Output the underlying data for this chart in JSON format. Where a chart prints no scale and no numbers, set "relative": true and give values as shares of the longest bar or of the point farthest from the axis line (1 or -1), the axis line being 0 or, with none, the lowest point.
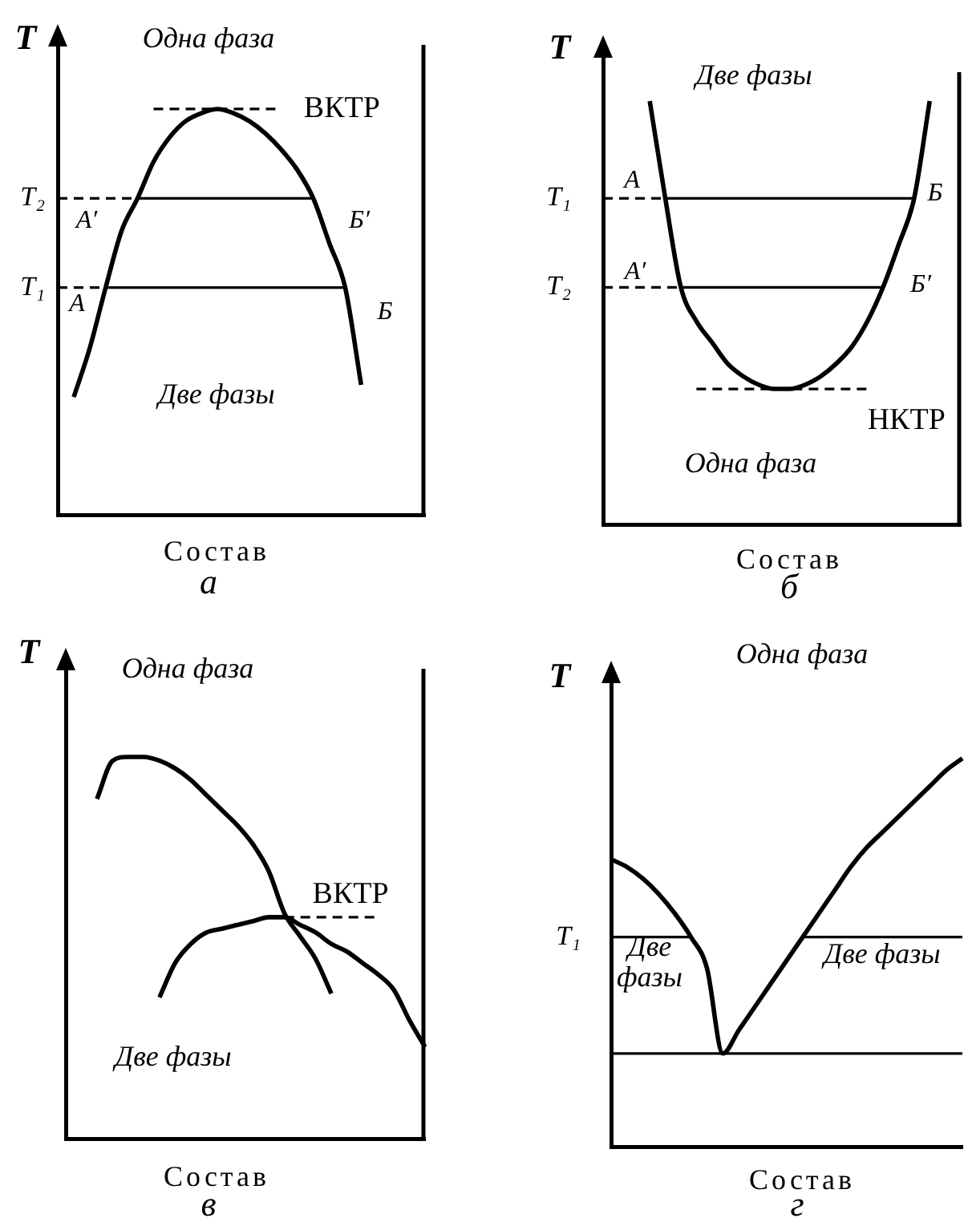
{
  "chart_data": [
    {
      "type": "line",
      "title": "а",
      "xlabel": "Состав",
      "ylabel": "T",
      "relative": true,
      "annotations": [
        "Одна фаза",
        "Две фазы",
        "А′",
        "Б′",
        "А",
        "Б"
      ],
      "categories": [
        null,
        null,
        null,
        null,
        null,
        null,
        null,
        null,
        null,
        null,
        null,
        null,
        null,
        null,
        null,
        null,
        null,
        null,
        null,
        null,
        null,
        null,
        null,
        null
      ],
      "series": [
        {
          "color": "#000000",
          "values": [
            null,
            0.29,
            0.41,
            0.56,
            0.7,
            0.78,
            0.87,
            0.93,
            0.97,
            0.99,
            1,
            0.99,
            0.97,
            0.94,
            0.9,
            0.85,
            0.78,
            0.67,
            0.56,
            0.32,
            null,
            null,
            null,
            null
          ]
        },
        {
          "name": "ВКТР",
          "color": "#000000",
          "line_style": "dashed",
          "values": [
            null,
            null,
            null,
            null,
            null,
            null,
            1,
            1,
            1,
            1,
            1,
            1,
            1,
            1,
            1,
            null,
            null,
            null,
            null,
            null,
            null,
            null,
            null,
            null
          ]
        },
        {
          "name": "T₂",
          "color": "#000000",
          "line_style": "dashed",
          "values": [
            0.78,
            0.78,
            0.78,
            0.78,
            0.78,
            0.78,
            null,
            null,
            null,
            null,
            null,
            null,
            null,
            null,
            null,
            null,
            null,
            null,
            null,
            null,
            null,
            null,
            null,
            null
          ]
        },
        {
          "color": "#000000",
          "values": [
            null,
            null,
            null,
            null,
            null,
            0.78,
            0.78,
            0.78,
            0.78,
            0.78,
            0.78,
            0.78,
            0.78,
            0.78,
            0.78,
            0.78,
            0.78,
            null,
            null,
            null,
            null,
            null,
            null,
            null
          ]
        },
        {
          "name": "T₁",
          "color": "#000000",
          "line_style": "dashed",
          "values": [
            0.56,
            0.56,
            0.56,
            0.56,
            null,
            null,
            null,
            null,
            null,
            null,
            null,
            null,
            null,
            null,
            null,
            null,
            null,
            null,
            null,
            null,
            null,
            null,
            null,
            null
          ]
        },
        {
          "color": "#000000",
          "values": [
            null,
            null,
            null,
            0.56,
            0.56,
            0.56,
            0.56,
            0.56,
            0.56,
            0.56,
            0.56,
            0.56,
            0.56,
            0.56,
            0.56,
            0.56,
            0.56,
            0.56,
            0.56,
            null,
            null,
            null,
            null,
            null
          ]
        }
      ]
    },
    {
      "type": "line",
      "title": "б",
      "xlabel": "Состав",
      "ylabel": "T",
      "relative": true,
      "annotations": [
        "Две фазы",
        "Одна фаза",
        "А",
        "Б",
        "А′",
        "Б′"
      ],
      "categories": [
        null,
        null,
        null,
        null,
        null,
        null,
        null,
        null,
        null,
        null,
        null,
        null,
        null,
        null,
        null,
        null,
        null,
        null,
        null,
        null,
        null,
        null,
        null,
        null
      ],
      "series": [
        {
          "color": "#000000",
          "values": [
            null,
            null,
            null,
            1,
            0.77,
            0.56,
            0.48,
            0.43,
            0.38,
            0.35,
            0.33,
            0.32,
            0.32,
            0.33,
            0.35,
            0.38,
            0.42,
            0.48,
            0.56,
            0.66,
            0.77,
            1,
            null,
            null
          ]
        },
        {
          "name": "НКТР",
          "color": "#000000",
          "line_style": "dashed",
          "values": [
            null,
            null,
            null,
            null,
            null,
            null,
            0.32,
            0.32,
            0.32,
            0.32,
            0.32,
            0.32,
            0.32,
            0.32,
            0.32,
            0.32,
            0.32,
            0.32,
            null,
            null,
            null,
            null,
            null,
            null
          ]
        },
        {
          "name": "T₁",
          "color": "#000000",
          "line_style": "dashed",
          "values": [
            0.77,
            0.77,
            0.77,
            0.77,
            0.77,
            null,
            null,
            null,
            null,
            null,
            null,
            null,
            null,
            null,
            null,
            null,
            null,
            null,
            null,
            null,
            null,
            null,
            null,
            null
          ]
        },
        {
          "color": "#000000",
          "values": [
            null,
            null,
            null,
            null,
            0.77,
            0.77,
            0.77,
            0.77,
            0.77,
            0.77,
            0.77,
            0.77,
            0.77,
            0.77,
            0.77,
            0.77,
            0.77,
            0.77,
            0.77,
            0.77,
            0.77,
            null,
            null,
            null
          ]
        },
        {
          "name": "T₂",
          "color": "#000000",
          "line_style": "dashed",
          "values": [
            0.56,
            0.56,
            0.56,
            0.56,
            0.56,
            0.56,
            null,
            null,
            null,
            null,
            null,
            null,
            null,
            null,
            null,
            null,
            null,
            null,
            null,
            null,
            null,
            null,
            null,
            null
          ]
        },
        {
          "color": "#000000",
          "values": [
            null,
            null,
            null,
            null,
            null,
            0.56,
            0.56,
            0.56,
            0.56,
            0.56,
            0.56,
            0.56,
            0.56,
            0.56,
            0.56,
            0.56,
            0.56,
            0.56,
            0.56,
            null,
            null,
            null,
            null,
            null
          ]
        }
      ]
    },
    {
      "type": "line",
      "title": "в",
      "xlabel": "Состав",
      "ylabel": "T",
      "relative": true,
      "annotations": [
        "Одна фаза",
        "Две фазы"
      ],
      "categories": [
        null,
        null,
        null,
        null,
        null,
        null,
        null,
        null,
        null,
        null,
        null,
        null,
        null,
        null,
        null,
        null,
        null,
        null,
        null,
        null,
        null,
        null,
        null,
        null
      ],
      "series": [
        {
          "color": "#000000",
          "values": [
            null,
            null,
            0.89,
            0.99,
            1,
            1,
            0.99,
            0.97,
            0.94,
            0.9,
            0.86,
            0.82,
            0.77,
            0.7,
            0.59,
            0.53,
            0.47,
            0.38,
            null,
            null,
            null,
            null,
            null,
            null
          ]
        },
        {
          "color": "#000000",
          "values": [
            null,
            null,
            null,
            null,
            null,
            null,
            0.37,
            0.46,
            0.51,
            0.54,
            0.55,
            0.56,
            0.57,
            0.58,
            0.58,
            0.56,
            0.54,
            0.51,
            0.49,
            0.46,
            0.43,
            0.39,
            0.31,
            0.24
          ]
        },
        {
          "name": "ВКТР",
          "color": "#000000",
          "line_style": "dashed",
          "values": [
            null,
            null,
            null,
            null,
            null,
            null,
            null,
            null,
            null,
            null,
            null,
            null,
            null,
            null,
            0.58,
            0.58,
            0.58,
            0.58,
            0.58,
            0.58,
            0.58,
            null,
            null,
            null
          ]
        }
      ]
    },
    {
      "type": "line",
      "title": "г",
      "xlabel": "Состав",
      "ylabel": "T",
      "relative": true,
      "annotations": [
        "Одна фаза",
        "Две фазы",
        "Две фазы"
      ],
      "categories": [
        null,
        null,
        null,
        null,
        null,
        null,
        null,
        null,
        null,
        null,
        null,
        null,
        null,
        null,
        null,
        null,
        null,
        null,
        null,
        null,
        null,
        null,
        null
      ],
      "series": [
        {
          "color": "#000000",
          "values": [
            0.74,
            0.72,
            0.69,
            0.65,
            0.6,
            0.54,
            0.46,
            0.24,
            0.3,
            0.36,
            0.42,
            0.48,
            0.54,
            0.6,
            0.66,
            0.72,
            0.77,
            0.81,
            0.85,
            0.89,
            0.93,
            0.97,
            1
          ]
        },
        {
          "name": "T₁",
          "color": "#000000",
          "values": [
            0.54,
            0.54,
            0.54,
            0.54,
            0.54,
            0.54,
            null,
            null,
            null,
            null,
            null,
            null,
            0.54,
            0.54,
            0.54,
            0.54,
            0.54,
            0.54,
            0.54,
            0.54,
            0.54,
            0.54,
            0.54
          ]
        },
        {
          "color": "#000000",
          "values": [
            0.24,
            0.24,
            0.24,
            0.24,
            0.24,
            0.24,
            0.24,
            0.24,
            0.24,
            0.24,
            0.24,
            0.24,
            0.24,
            0.24,
            0.24,
            0.24,
            0.24,
            0.24,
            0.24,
            0.24,
            0.24,
            0.24,
            0.24
          ]
        }
      ]
    }
  ]
}
